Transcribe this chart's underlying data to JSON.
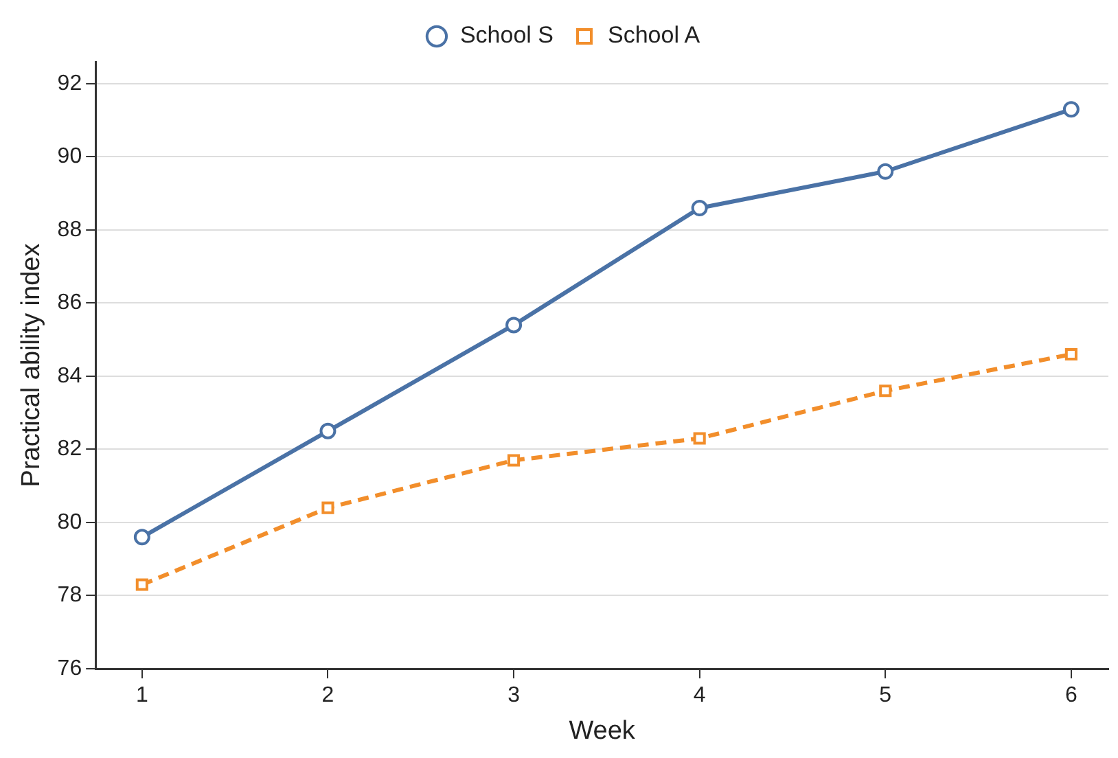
{
  "chart_data": {
    "type": "line",
    "xlabel": "Week",
    "ylabel": "Practical ability index",
    "x": [
      1,
      2,
      3,
      4,
      5,
      6
    ],
    "series": [
      {
        "name": "School S",
        "color": "#4a72a6",
        "marker": "circle",
        "line_style": "solid",
        "values": [
          79.6,
          82.5,
          85.4,
          88.6,
          89.6,
          91.3
        ]
      },
      {
        "name": "School A",
        "color": "#f28e2b",
        "marker": "square",
        "line_style": "dashed",
        "values": [
          78.3,
          80.4,
          81.7,
          82.3,
          83.6,
          84.6
        ]
      }
    ],
    "xlim": [
      0.75,
      6.2
    ],
    "xticks": [
      1,
      2,
      3,
      4,
      5,
      6
    ],
    "ylim": [
      76,
      92.6
    ],
    "yticks": [
      76,
      78,
      80,
      82,
      84,
      86,
      88,
      90,
      92
    ],
    "grid": "y",
    "legend": "top"
  }
}
